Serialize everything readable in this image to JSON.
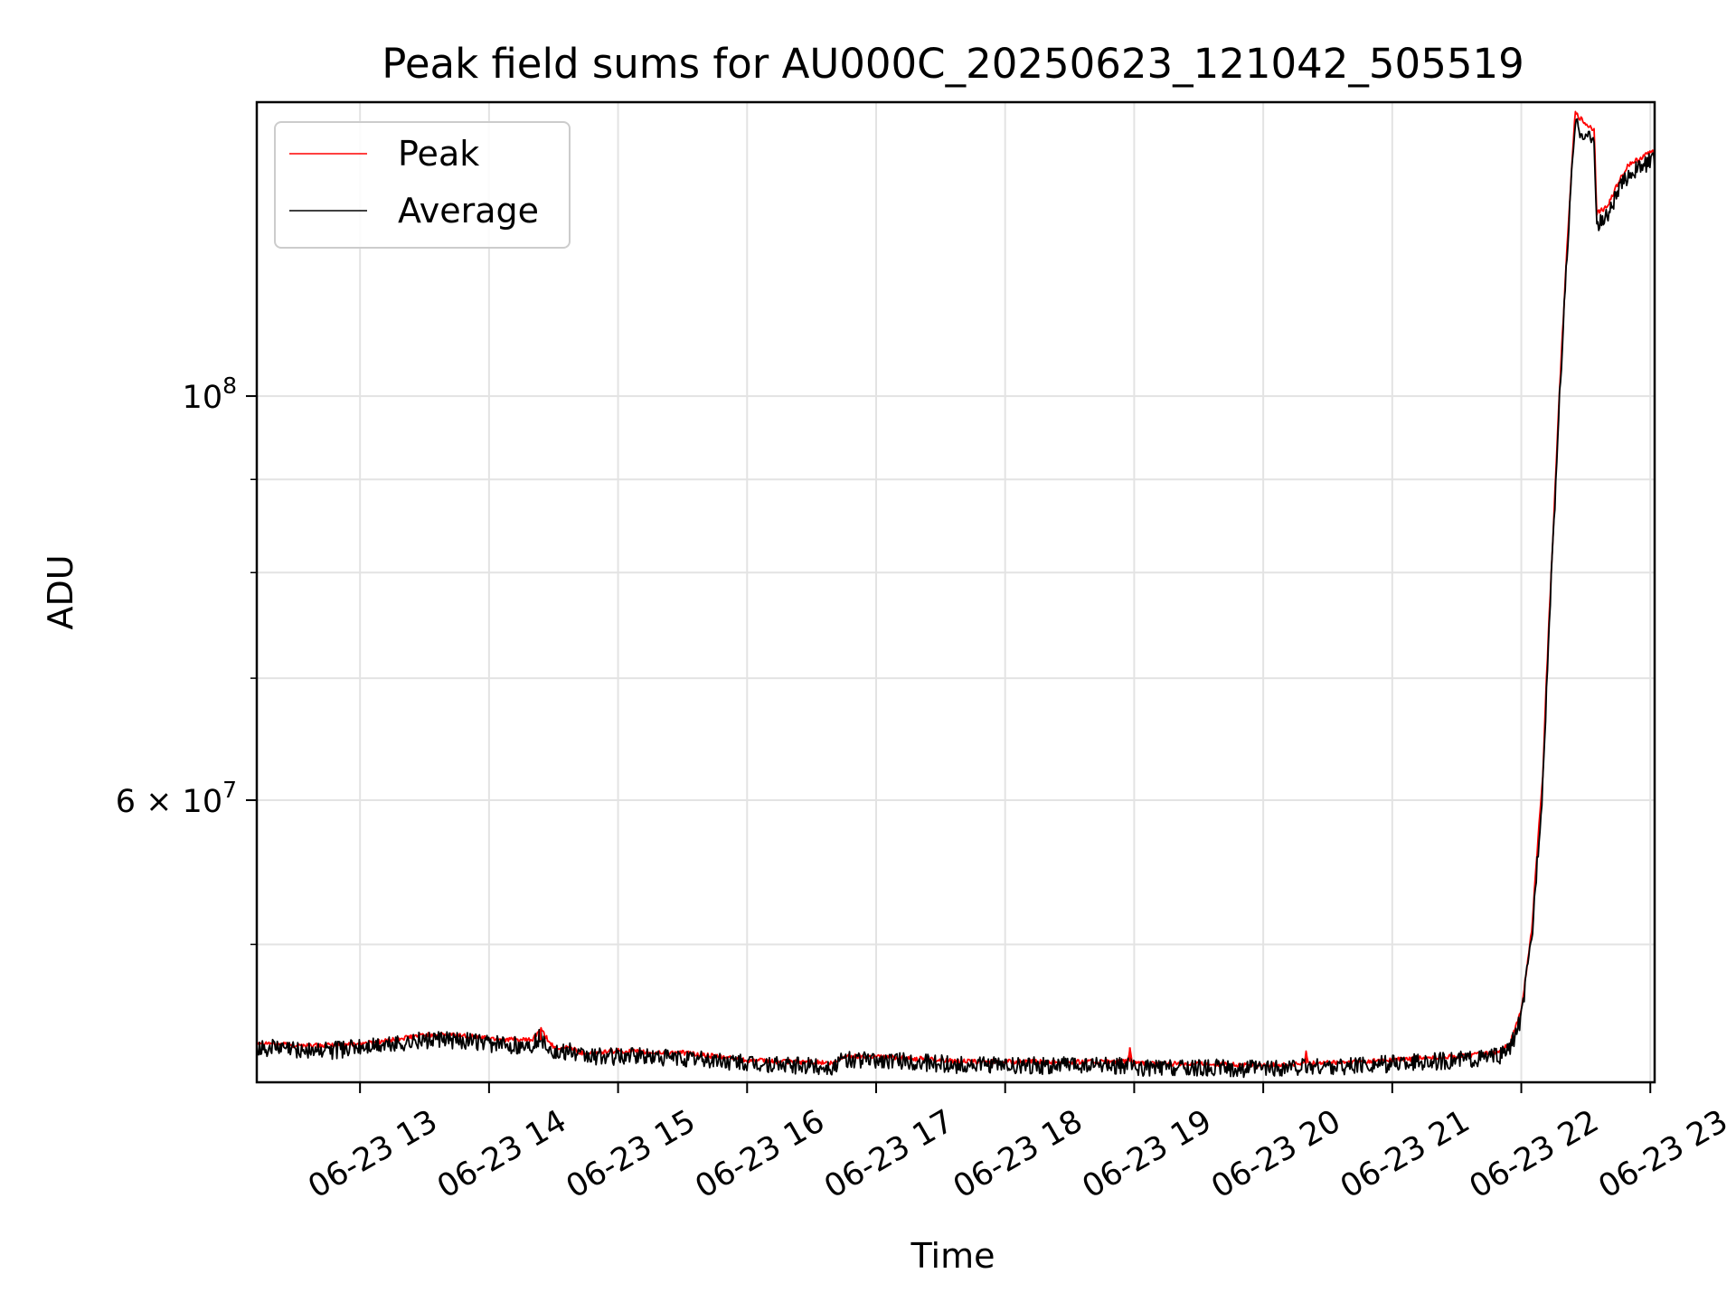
{
  "chart_data": {
    "type": "line",
    "title": "Peak field sums for AU000C_20250623_121042_505519",
    "xlabel": "Time",
    "ylabel": "ADU",
    "x_ticks": [
      "06-23 13",
      "06-23 14",
      "06-23 15",
      "06-23 16",
      "06-23 17",
      "06-23 18",
      "06-23 19",
      "06-23 20",
      "06-23 21",
      "06-23 22",
      "06-23 23"
    ],
    "y_ticks": [
      {
        "value": 60000000,
        "mantissa": "6",
        "exponent": "7",
        "base": "10"
      },
      {
        "value": 100000000,
        "mantissa": "",
        "exponent": "8",
        "base": "10"
      }
    ],
    "y_minor_ticks": [
      50000000,
      70000000,
      80000000,
      90000000
    ],
    "y_scale": "log",
    "xlim": [
      "2025-06-23 12:12",
      "2025-06-23 23:02"
    ],
    "ylim": [
      42000000,
      145000000
    ],
    "grid": true,
    "legend_position": "upper left",
    "series": [
      {
        "name": "Peak",
        "color": "#ff0000",
        "points": [
          [
            "2025-06-23 12:12",
            44.2
          ],
          [
            "2025-06-23 12:30",
            44.0
          ],
          [
            "2025-06-23 12:45",
            44.0
          ],
          [
            "2025-06-23 13:00",
            44.1
          ],
          [
            "2025-06-23 13:15",
            44.3
          ],
          [
            "2025-06-23 13:30",
            44.6
          ],
          [
            "2025-06-23 13:45",
            44.6
          ],
          [
            "2025-06-23 14:00",
            44.4
          ],
          [
            "2025-06-23 14:15",
            44.3
          ],
          [
            "2025-06-23 14:20",
            44.3
          ],
          [
            "2025-06-23 14:24",
            44.9
          ],
          [
            "2025-06-23 14:28",
            44.2
          ],
          [
            "2025-06-23 14:32",
            43.7
          ],
          [
            "2025-06-23 14:37",
            44.0
          ],
          [
            "2025-06-23 14:42",
            43.6
          ],
          [
            "2025-06-23 14:50",
            43.6
          ],
          [
            "2025-06-23 15:00",
            43.7
          ],
          [
            "2025-06-23 15:15",
            43.6
          ],
          [
            "2025-06-23 15:30",
            43.6
          ],
          [
            "2025-06-23 15:45",
            43.4
          ],
          [
            "2025-06-23 16:00",
            43.2
          ],
          [
            "2025-06-23 16:15",
            43.1
          ],
          [
            "2025-06-23 16:30",
            43.1
          ],
          [
            "2025-06-23 16:40",
            43.0
          ],
          [
            "2025-06-23 16:45",
            43.4
          ],
          [
            "2025-06-23 17:00",
            43.4
          ],
          [
            "2025-06-23 17:15",
            43.3
          ],
          [
            "2025-06-23 17:30",
            43.2
          ],
          [
            "2025-06-23 17:45",
            43.1
          ],
          [
            "2025-06-23 18:00",
            43.1
          ],
          [
            "2025-06-23 18:30",
            43.1
          ],
          [
            "2025-06-23 18:57",
            43.1
          ],
          [
            "2025-06-23 18:58",
            43.9
          ],
          [
            "2025-06-23 18:59",
            43.0
          ],
          [
            "2025-06-23 19:30",
            43.0
          ],
          [
            "2025-06-23 20:00",
            42.9
          ],
          [
            "2025-06-23 20:19",
            43.0
          ],
          [
            "2025-06-23 20:20",
            43.6
          ],
          [
            "2025-06-23 20:21",
            43.0
          ],
          [
            "2025-06-23 20:45",
            43.1
          ],
          [
            "2025-06-23 21:00",
            43.2
          ],
          [
            "2025-06-23 21:30",
            43.4
          ],
          [
            "2025-06-23 21:50",
            43.6
          ],
          [
            "2025-06-23 21:55",
            44.2
          ],
          [
            "2025-06-23 22:00",
            46.0
          ],
          [
            "2025-06-23 22:05",
            51.0
          ],
          [
            "2025-06-23 22:10",
            62.0
          ],
          [
            "2025-06-23 22:15",
            85.0
          ],
          [
            "2025-06-23 22:20",
            113.0
          ],
          [
            "2025-06-23 22:25",
            143.0
          ],
          [
            "2025-06-23 22:30",
            141.0
          ],
          [
            "2025-06-23 22:34",
            140.0
          ],
          [
            "2025-06-23 22:35",
            126.0
          ],
          [
            "2025-06-23 22:40",
            127.0
          ],
          [
            "2025-06-23 22:45",
            131.0
          ],
          [
            "2025-06-23 22:50",
            134.0
          ],
          [
            "2025-06-23 22:55",
            135.0
          ],
          [
            "2025-06-23 23:02",
            136.5
          ]
        ]
      },
      {
        "name": "Average",
        "color": "#000000",
        "points": [
          [
            "2025-06-23 12:12",
            43.9
          ],
          [
            "2025-06-23 12:30",
            43.8
          ],
          [
            "2025-06-23 12:45",
            43.7
          ],
          [
            "2025-06-23 13:00",
            43.9
          ],
          [
            "2025-06-23 13:15",
            44.1
          ],
          [
            "2025-06-23 13:30",
            44.3
          ],
          [
            "2025-06-23 13:45",
            44.3
          ],
          [
            "2025-06-23 14:00",
            44.1
          ],
          [
            "2025-06-23 14:15",
            44.0
          ],
          [
            "2025-06-23 14:20",
            44.0
          ],
          [
            "2025-06-23 14:24",
            44.5
          ],
          [
            "2025-06-23 14:28",
            43.9
          ],
          [
            "2025-06-23 14:32",
            43.5
          ],
          [
            "2025-06-23 14:37",
            43.7
          ],
          [
            "2025-06-23 14:42",
            43.4
          ],
          [
            "2025-06-23 14:50",
            43.4
          ],
          [
            "2025-06-23 15:00",
            43.4
          ],
          [
            "2025-06-23 15:15",
            43.4
          ],
          [
            "2025-06-23 15:30",
            43.3
          ],
          [
            "2025-06-23 15:45",
            43.2
          ],
          [
            "2025-06-23 16:00",
            43.0
          ],
          [
            "2025-06-23 16:15",
            42.9
          ],
          [
            "2025-06-23 16:30",
            42.9
          ],
          [
            "2025-06-23 16:40",
            42.8
          ],
          [
            "2025-06-23 16:45",
            43.2
          ],
          [
            "2025-06-23 17:00",
            43.2
          ],
          [
            "2025-06-23 17:15",
            43.1
          ],
          [
            "2025-06-23 17:30",
            43.0
          ],
          [
            "2025-06-23 17:45",
            42.9
          ],
          [
            "2025-06-23 18:00",
            42.9
          ],
          [
            "2025-06-23 18:30",
            42.9
          ],
          [
            "2025-06-23 18:57",
            42.9
          ],
          [
            "2025-06-23 18:58",
            42.9
          ],
          [
            "2025-06-23 18:59",
            42.8
          ],
          [
            "2025-06-23 19:30",
            42.8
          ],
          [
            "2025-06-23 20:00",
            42.7
          ],
          [
            "2025-06-23 20:19",
            42.8
          ],
          [
            "2025-06-23 20:20",
            42.8
          ],
          [
            "2025-06-23 20:21",
            42.8
          ],
          [
            "2025-06-23 20:45",
            42.9
          ],
          [
            "2025-06-23 21:00",
            43.0
          ],
          [
            "2025-06-23 21:30",
            43.2
          ],
          [
            "2025-06-23 21:50",
            43.4
          ],
          [
            "2025-06-23 21:55",
            43.9
          ],
          [
            "2025-06-23 22:00",
            45.6
          ],
          [
            "2025-06-23 22:05",
            50.5
          ],
          [
            "2025-06-23 22:10",
            61.0
          ],
          [
            "2025-06-23 22:15",
            84.0
          ],
          [
            "2025-06-23 22:20",
            112.0
          ],
          [
            "2025-06-23 22:25",
            141.0
          ],
          [
            "2025-06-23 22:30",
            139.0
          ],
          [
            "2025-06-23 22:34",
            138.0
          ],
          [
            "2025-06-23 22:35",
            124.0
          ],
          [
            "2025-06-23 22:40",
            125.5
          ],
          [
            "2025-06-23 22:45",
            129.5
          ],
          [
            "2025-06-23 22:50",
            132.5
          ],
          [
            "2025-06-23 22:55",
            133.5
          ],
          [
            "2025-06-23 23:02",
            135.0
          ]
        ]
      }
    ],
    "y_value_unit_multiplier": 1000000
  }
}
